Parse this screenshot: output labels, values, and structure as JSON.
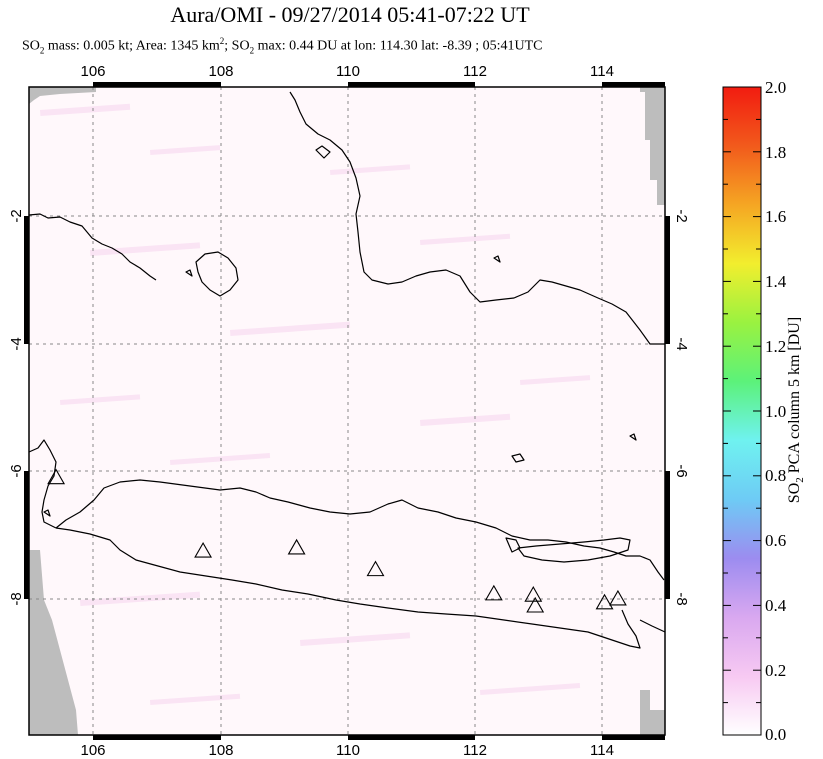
{
  "title": "Aura/OMI - 09/27/2014 05:41-07:22 UT",
  "subtitle": {
    "mass_prefix": "SO",
    "mass_sub": "2",
    "mass_text": " mass: 0.005 kt; Area: 1345 km",
    "area_sup": "2",
    "max_prefix": "; SO",
    "max_sub": "2",
    "max_text": " max: 0.44 DU at lon: 114.30 lat: -8.39 ; 05:41UTC"
  },
  "map": {
    "lon_ticks": [
      "106",
      "108",
      "110",
      "112",
      "114"
    ],
    "lat_ticks": [
      "-2",
      "-4",
      "-6",
      "-8"
    ],
    "lat_ticks_right": [
      "-2",
      "-4",
      "-6",
      "-8"
    ],
    "volcanoes": [
      {
        "lon": 105.42,
        "lat": -6.1
      },
      {
        "lon": 107.73,
        "lat": -7.25
      },
      {
        "lon": 109.2,
        "lat": -7.2
      },
      {
        "lon": 110.44,
        "lat": -7.54
      },
      {
        "lon": 112.3,
        "lat": -7.92
      },
      {
        "lon": 112.92,
        "lat": -7.94
      },
      {
        "lon": 112.95,
        "lat": -8.11
      },
      {
        "lon": 114.04,
        "lat": -8.06
      },
      {
        "lon": 114.25,
        "lat": -8.0
      }
    ]
  },
  "colorbar": {
    "label_prefix": "SO",
    "label_sub": "2",
    "label_text": " PCA column 5 km [DU]",
    "ticks": [
      "2.0",
      "1.8",
      "1.6",
      "1.4",
      "1.2",
      "1.0",
      "0.8",
      "0.6",
      "0.4",
      "0.2",
      "0.0"
    ],
    "colors": [
      "#ffffff",
      "#f7c9f2",
      "#d9a8f0",
      "#9c8cf0",
      "#6ecbf5",
      "#6ff2f0",
      "#5cf27a",
      "#9af240",
      "#f2ee2e",
      "#f5a623",
      "#f25a1c",
      "#f21c10"
    ]
  }
}
